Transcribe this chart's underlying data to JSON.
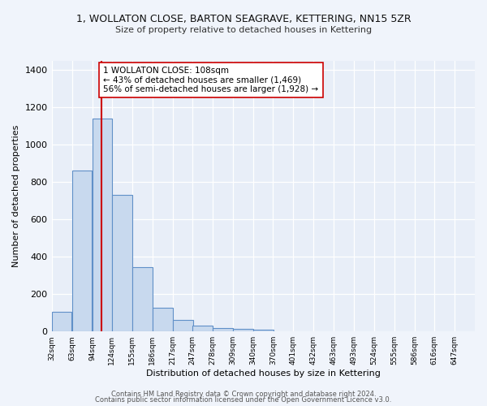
{
  "title1": "1, WOLLATON CLOSE, BARTON SEAGRAVE, KETTERING, NN15 5ZR",
  "title2": "Size of property relative to detached houses in Kettering",
  "xlabel": "Distribution of detached houses by size in Kettering",
  "ylabel": "Number of detached properties",
  "bar_left_edges": [
    32,
    63,
    94,
    124,
    155,
    186,
    217,
    247,
    278,
    309,
    340,
    370,
    401,
    432,
    463,
    493,
    524,
    555,
    586,
    616
  ],
  "bar_heights": [
    107,
    863,
    1141,
    730,
    343,
    127,
    60,
    30,
    18,
    12,
    8,
    0,
    0,
    0,
    0,
    0,
    0,
    0,
    0,
    0
  ],
  "bin_width": 31,
  "bar_color": "#c8d9ee",
  "bar_edge_color": "#6090c8",
  "vline_x": 108,
  "vline_color": "#cc0000",
  "annotation_text": "1 WOLLATON CLOSE: 108sqm\n← 43% of detached houses are smaller (1,469)\n56% of semi-detached houses are larger (1,928) →",
  "annotation_box_color": "#ffffff",
  "annotation_box_edge": "#cc0000",
  "ylim": [
    0,
    1450
  ],
  "yticks": [
    0,
    200,
    400,
    600,
    800,
    1000,
    1200,
    1400
  ],
  "tick_labels": [
    "32sqm",
    "63sqm",
    "94sqm",
    "124sqm",
    "155sqm",
    "186sqm",
    "217sqm",
    "247sqm",
    "278sqm",
    "309sqm",
    "340sqm",
    "370sqm",
    "401sqm",
    "432sqm",
    "463sqm",
    "493sqm",
    "524sqm",
    "555sqm",
    "586sqm",
    "616sqm",
    "647sqm"
  ],
  "footnote1": "Contains HM Land Registry data © Crown copyright and database right 2024.",
  "footnote2": "Contains public sector information licensed under the Open Government Licence v3.0.",
  "fig_bg_color": "#f0f4fb",
  "plot_bg_color": "#e8eef8"
}
